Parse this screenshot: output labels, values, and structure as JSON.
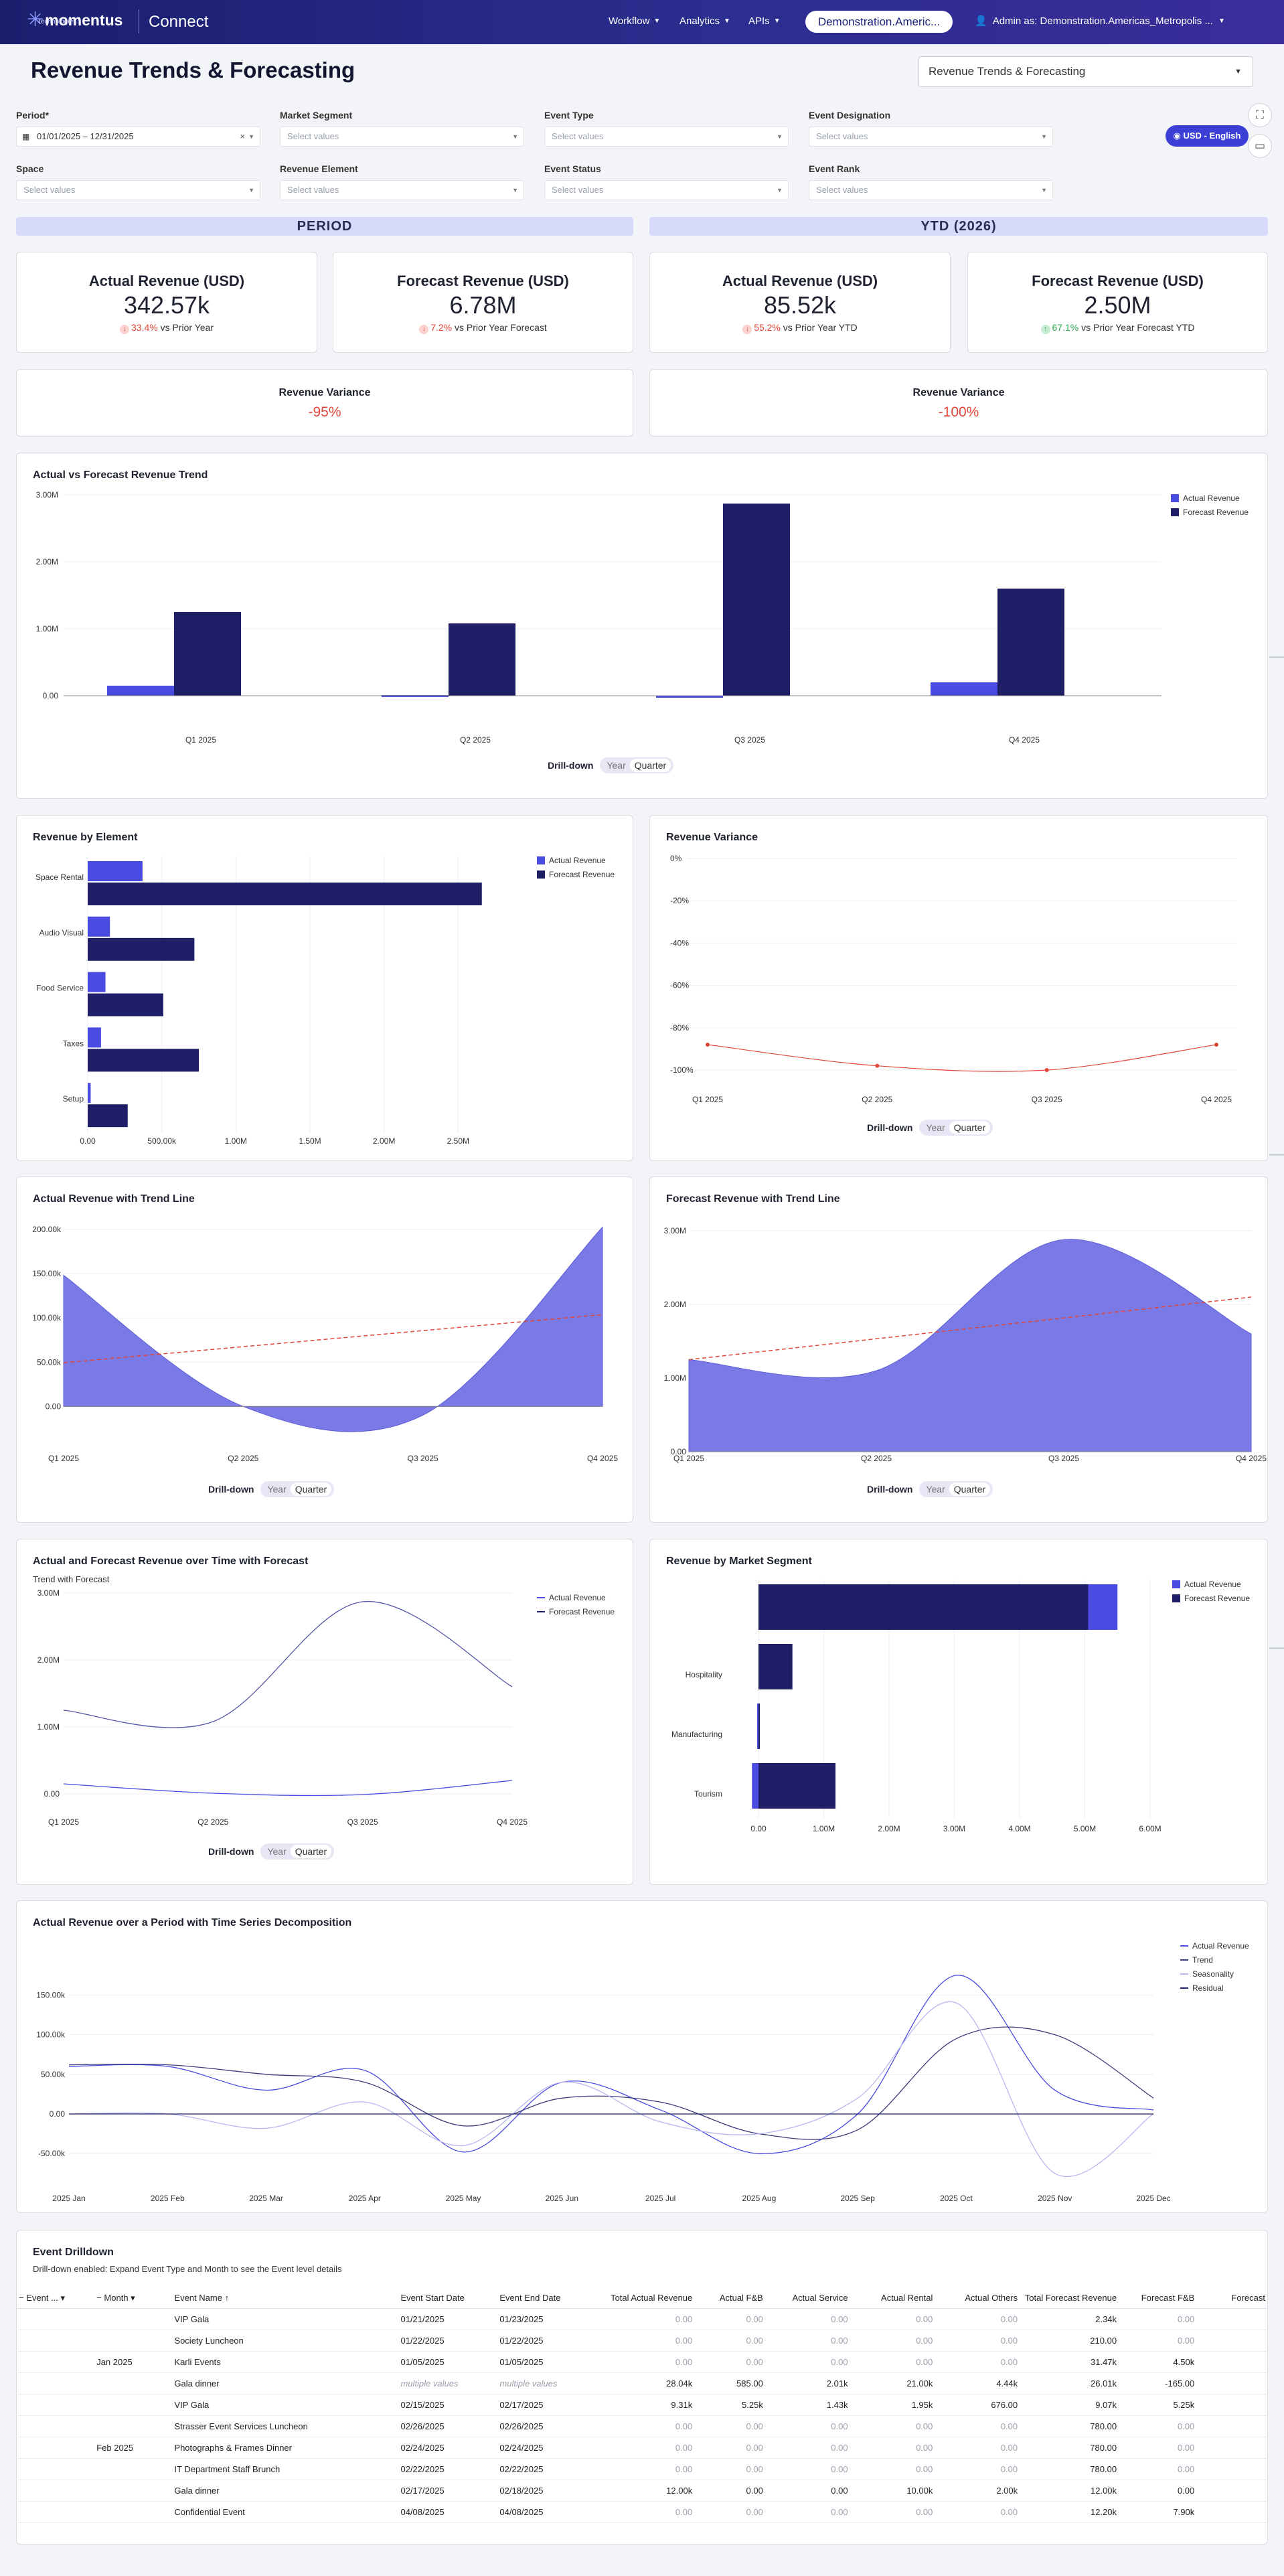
{
  "header": {
    "logo": "momentus",
    "logo_sub": "technologies",
    "app": "Connect",
    "nav": [
      "Workflow",
      "Analytics",
      "APIs"
    ],
    "env": "Demonstration.Americ...",
    "user": "Admin as: Demonstration.Americas_Metropolis ..."
  },
  "page": {
    "title": "Revenue Trends & Forecasting",
    "report_select": "Revenue Trends & Forecasting"
  },
  "filters": {
    "period": {
      "label": "Period*",
      "value": "01/01/2025 – 12/31/2025"
    },
    "market_segment": {
      "label": "Market Segment",
      "placeholder": "Select values"
    },
    "event_type": {
      "label": "Event Type",
      "placeholder": "Select values"
    },
    "event_designation": {
      "label": "Event Designation",
      "placeholder": "Select values"
    },
    "space": {
      "label": "Space",
      "placeholder": "Select values"
    },
    "revenue_element": {
      "label": "Revenue Element",
      "placeholder": "Select values"
    },
    "event_status": {
      "label": "Event Status",
      "placeholder": "Select values"
    },
    "event_rank": {
      "label": "Event Rank",
      "placeholder": "Select values"
    },
    "currency_button": "USD - English"
  },
  "sections": {
    "period": "PERIOD",
    "ytd": "YTD (2026)"
  },
  "kpis": [
    {
      "title": "Actual Revenue (USD)",
      "value": "342.57k",
      "pct": "33.4%",
      "dir": "down",
      "sub": "vs Prior Year"
    },
    {
      "title": "Forecast Revenue (USD)",
      "value": "6.78M",
      "pct": "7.2%",
      "dir": "down",
      "sub": "vs Prior Year Forecast"
    },
    {
      "title": "Actual Revenue (USD)",
      "value": "85.52k",
      "pct": "55.2%",
      "dir": "down",
      "sub": "vs Prior Year YTD"
    },
    {
      "title": "Forecast Revenue (USD)",
      "value": "2.50M",
      "pct": "67.1%",
      "dir": "up",
      "sub": "vs Prior Year Forecast YTD"
    }
  ],
  "variance": [
    {
      "title": "Revenue Variance",
      "value": "-95%"
    },
    {
      "title": "Revenue Variance",
      "value": "-100%"
    }
  ],
  "drill": {
    "label": "Drill-down",
    "year": "Year",
    "quarter": "Quarter"
  },
  "colors": {
    "actual": "#4a4be0",
    "forecast": "#1e1f66",
    "area": "#7a7ae6",
    "trend": "#e2453a",
    "seasonality": "#b9b7ef"
  },
  "chart_data": [
    {
      "id": "trend",
      "type": "bar",
      "title": "Actual vs Forecast Revenue Trend",
      "categories": [
        "Q1 2025",
        "Q2 2025",
        "Q3 2025",
        "Q4 2025"
      ],
      "series": [
        {
          "name": "Actual Revenue",
          "values": [
            150000,
            10000,
            -10000,
            200000
          ]
        },
        {
          "name": "Forecast Revenue",
          "values": [
            1250000,
            1080000,
            2870000,
            1600000
          ]
        }
      ],
      "yticks": [
        "3.00M",
        "2.00M",
        "1.00M",
        "0.00"
      ],
      "ylim": [
        0,
        3000000
      ]
    },
    {
      "id": "element",
      "type": "bar",
      "title": "Revenue by Element",
      "categories": [
        "Space Rental",
        "Audio Visual",
        "Food Service",
        "Taxes",
        "Setup"
      ],
      "series": [
        {
          "name": "Actual Revenue",
          "values": [
            370000,
            150000,
            120000,
            90000,
            20000
          ]
        },
        {
          "name": "Forecast Revenue",
          "values": [
            2660000,
            720000,
            510000,
            750000,
            270000
          ]
        }
      ],
      "xticks": [
        "0.00",
        "500.00k",
        "1.00M",
        "1.50M",
        "2.00M",
        "2.50M"
      ],
      "xlim": [
        0,
        3000000
      ]
    },
    {
      "id": "variance",
      "type": "line",
      "title": "Revenue Variance",
      "categories": [
        "Q1 2025",
        "Q2 2025",
        "Q3 2025",
        "Q4 2025"
      ],
      "values": [
        -88,
        -98,
        -100,
        -88
      ],
      "yticks": [
        "0%",
        "-20%",
        "-40%",
        "-60%",
        "-80%",
        "-100%"
      ],
      "ylim": [
        -100,
        0
      ]
    },
    {
      "id": "actual_trend",
      "type": "area",
      "title": "Actual Revenue with Trend Line",
      "categories": [
        "Q1 2025",
        "Q2 2025",
        "Q3 2025",
        "Q4 2025"
      ],
      "values": [
        150000,
        0,
        -10000,
        205000
      ],
      "trend": [
        50000,
        105000
      ],
      "yticks": [
        "200.00k",
        "150.00k",
        "100.00k",
        "50.00k",
        "0.00"
      ],
      "ylim": [
        -15000,
        210000
      ]
    },
    {
      "id": "forecast_trend",
      "type": "area",
      "title": "Forecast Revenue with Trend Line",
      "categories": [
        "Q1 2025",
        "Q2 2025",
        "Q3 2025",
        "Q4 2025"
      ],
      "values": [
        1250000,
        1100000,
        2880000,
        1600000
      ],
      "trend": [
        1250000,
        2100000
      ],
      "yticks": [
        "3.00M",
        "2.00M",
        "1.00M",
        "0.00"
      ],
      "ylim": [
        0,
        3000000
      ]
    },
    {
      "id": "over_time",
      "type": "line",
      "title": "Actual and Forecast Revenue over Time with Forecast",
      "subtitle": "Trend with Forecast",
      "categories": [
        "Q1 2025",
        "Q2 2025",
        "Q3 2025",
        "Q4 2025"
      ],
      "series": [
        {
          "name": "Actual Revenue",
          "values": [
            150000,
            10000,
            -10000,
            200000
          ]
        },
        {
          "name": "Forecast Revenue",
          "values": [
            1250000,
            1080000,
            2870000,
            1600000
          ]
        }
      ],
      "yticks": [
        "3.00M",
        "2.00M",
        "1.00M",
        "0.00"
      ],
      "ylim": [
        0,
        3000000
      ]
    },
    {
      "id": "segment",
      "type": "bar",
      "title": "Revenue by Market Segment",
      "categories": [
        "",
        "Hospitality",
        "Manufacturing",
        "Tourism"
      ],
      "series": [
        {
          "name": "Actual Revenue",
          "values": [
            5500000,
            50000,
            -20000,
            -100000
          ]
        },
        {
          "name": "Forecast Revenue",
          "values": [
            5050000,
            520000,
            20000,
            1180000
          ]
        }
      ],
      "xticks": [
        "0.00",
        "1.00M",
        "2.00M",
        "3.00M",
        "4.00M",
        "5.00M",
        "6.00M"
      ],
      "xlim": [
        0,
        6000000
      ]
    },
    {
      "id": "decomposition",
      "type": "line",
      "title": "Actual Revenue over a Period with Time Series Decomposition",
      "categories": [
        "2025 Jan",
        "2025 Feb",
        "2025 Mar",
        "2025 Apr",
        "2025 May",
        "2025 Jun",
        "2025 Jul",
        "2025 Aug",
        "2025 Sep",
        "2025 Oct",
        "2025 Nov",
        "2025 Dec"
      ],
      "series": [
        {
          "name": "Actual Revenue",
          "values": [
            60000,
            60000,
            30000,
            55000,
            -48000,
            40000,
            5000,
            -50000,
            0,
            175000,
            30000,
            5000
          ]
        },
        {
          "name": "Trend",
          "values": [
            62000,
            62000,
            50000,
            40000,
            -15000,
            20000,
            15000,
            -25000,
            -20000,
            95000,
            100000,
            20000
          ]
        },
        {
          "name": "Seasonality",
          "values": [
            0,
            0,
            -18000,
            15000,
            -40000,
            40000,
            -10000,
            -25000,
            20000,
            140000,
            -75000,
            0
          ]
        },
        {
          "name": "Residual",
          "values": [
            0,
            0,
            0,
            0,
            0,
            0,
            0,
            0,
            0,
            0,
            0,
            0
          ]
        }
      ],
      "yticks": [
        "150.00k",
        "100.00k",
        "50.00k",
        "0.00",
        "-50.00k"
      ],
      "ylim": [
        -60000,
        185000
      ]
    }
  ],
  "table": {
    "title": "Event Drilldown",
    "subtitle": "Drill-down enabled: Expand Event Type and Month to see the Event level details",
    "headers": [
      "Event ...",
      "Month",
      "Event Name",
      "Event Start Date",
      "Event End Date",
      "Total Actual Revenue",
      "Actual F&B",
      "Actual Service",
      "Actual Rental",
      "Actual Others",
      "Total Forecast Revenue",
      "Forecast F&B",
      "Forecast"
    ],
    "rows": [
      [
        "",
        "",
        "VIP Gala",
        "01/21/2025",
        "01/23/2025",
        "0.00",
        "0.00",
        "0.00",
        "0.00",
        "0.00",
        "2.34k",
        "0.00",
        ""
      ],
      [
        "",
        "",
        "Society Luncheon",
        "01/22/2025",
        "01/22/2025",
        "0.00",
        "0.00",
        "0.00",
        "0.00",
        "0.00",
        "210.00",
        "0.00",
        ""
      ],
      [
        "",
        "Jan 2025",
        "Karli Events",
        "01/05/2025",
        "01/05/2025",
        "0.00",
        "0.00",
        "0.00",
        "0.00",
        "0.00",
        "31.47k",
        "4.50k",
        ""
      ],
      [
        "",
        "",
        "Gala dinner",
        "multiple values",
        "multiple values",
        "28.04k",
        "585.00",
        "2.01k",
        "21.00k",
        "4.44k",
        "26.01k",
        "-165.00",
        ""
      ],
      [
        "",
        "",
        "VIP Gala",
        "02/15/2025",
        "02/17/2025",
        "9.31k",
        "5.25k",
        "1.43k",
        "1.95k",
        "676.00",
        "9.07k",
        "5.25k",
        ""
      ],
      [
        "",
        "",
        "Strasser Event Services Luncheon",
        "02/26/2025",
        "02/26/2025",
        "0.00",
        "0.00",
        "0.00",
        "0.00",
        "0.00",
        "780.00",
        "0.00",
        ""
      ],
      [
        "",
        "Feb 2025",
        "Photographs & Frames Dinner",
        "02/24/2025",
        "02/24/2025",
        "0.00",
        "0.00",
        "0.00",
        "0.00",
        "0.00",
        "780.00",
        "0.00",
        ""
      ],
      [
        "",
        "",
        "IT Department Staff Brunch",
        "02/22/2025",
        "02/22/2025",
        "0.00",
        "0.00",
        "0.00",
        "0.00",
        "0.00",
        "780.00",
        "0.00",
        ""
      ],
      [
        "",
        "",
        "Gala dinner",
        "02/17/2025",
        "02/18/2025",
        "12.00k",
        "0.00",
        "0.00",
        "10.00k",
        "2.00k",
        "12.00k",
        "0.00",
        ""
      ],
      [
        "",
        "",
        "Confidential Event",
        "04/08/2025",
        "04/08/2025",
        "0.00",
        "0.00",
        "0.00",
        "0.00",
        "0.00",
        "12.20k",
        "7.90k",
        ""
      ]
    ]
  }
}
